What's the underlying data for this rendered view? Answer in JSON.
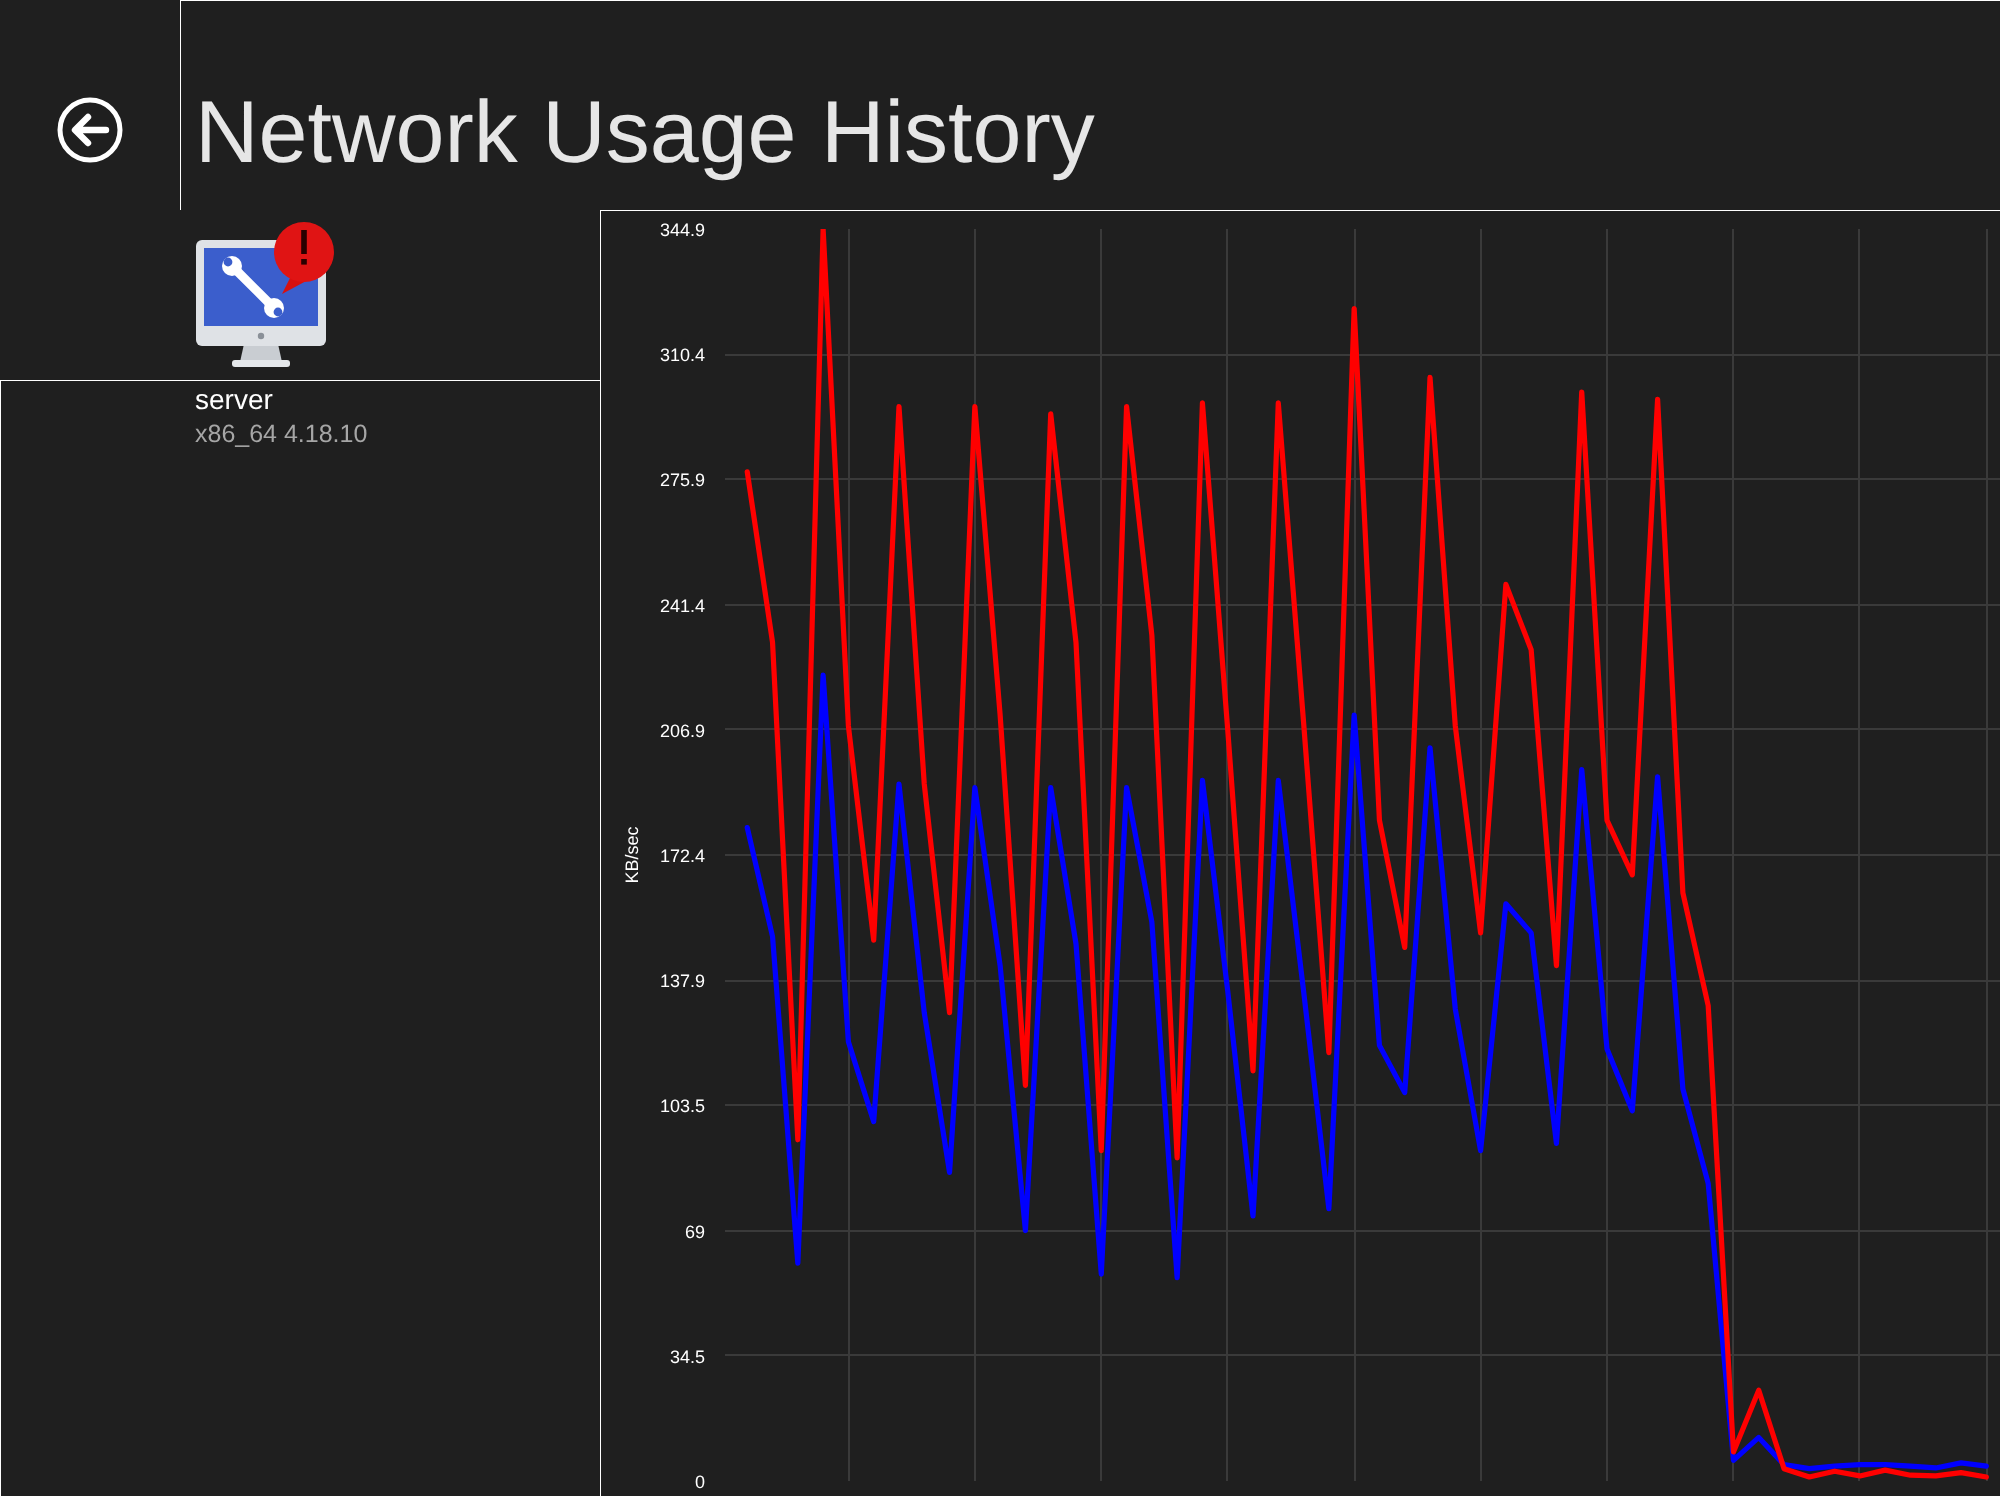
{
  "chart_data": {
    "type": "line",
    "title": "Network Usage History",
    "ylabel": "KB/sec",
    "annotations": [
      "server",
      "x86_64 4.18.10"
    ],
    "categories": [
      null,
      null,
      null,
      null,
      null,
      null,
      null,
      null,
      null,
      null,
      null,
      null,
      null,
      null,
      null,
      null,
      null,
      null,
      null,
      null,
      null,
      null,
      null,
      null,
      null,
      null,
      null,
      null,
      null,
      null,
      null,
      null,
      null,
      null,
      null,
      null,
      null,
      null,
      null,
      null,
      null,
      null,
      null,
      null,
      null,
      null,
      null,
      null,
      null,
      null
    ],
    "series": [
      {
        "color": "#0000ff",
        "values": [
          180,
          150,
          60,
          222,
          121,
          99,
          192,
          129,
          85,
          191,
          142,
          69,
          191,
          148,
          57,
          191,
          154,
          56,
          193,
          135,
          73,
          193,
          135,
          75,
          211,
          120,
          107,
          202,
          130,
          91,
          159,
          151,
          93,
          196,
          119,
          102,
          194,
          108,
          82,
          5.7,
          12,
          4.5,
          3.4,
          4.1,
          4.5,
          4.5,
          4.1,
          3.6,
          5.0,
          4.1
        ]
      },
      {
        "color": "#ff0000",
        "values": [
          278,
          231,
          94,
          344.9,
          208,
          149,
          296,
          192,
          129,
          296,
          211,
          109,
          294,
          231,
          91,
          296,
          233,
          89,
          297,
          207,
          113,
          297,
          209,
          118,
          323,
          182,
          147,
          304,
          208,
          151,
          247,
          229,
          142,
          300,
          182,
          167,
          298,
          162,
          131,
          8.0,
          25,
          3.4,
          1.1,
          2.7,
          1.4,
          3.0,
          1.6,
          1.4,
          2.3,
          1.1
        ]
      }
    ],
    "ylim": [
      0,
      344.9
    ],
    "yticks": [
      0,
      34.5,
      69,
      103.5,
      137.9,
      172.4,
      206.9,
      241.4,
      275.9,
      310.4,
      344.9
    ],
    "grid": true,
    "tick_labels": "y",
    "line_style": "solid"
  }
}
